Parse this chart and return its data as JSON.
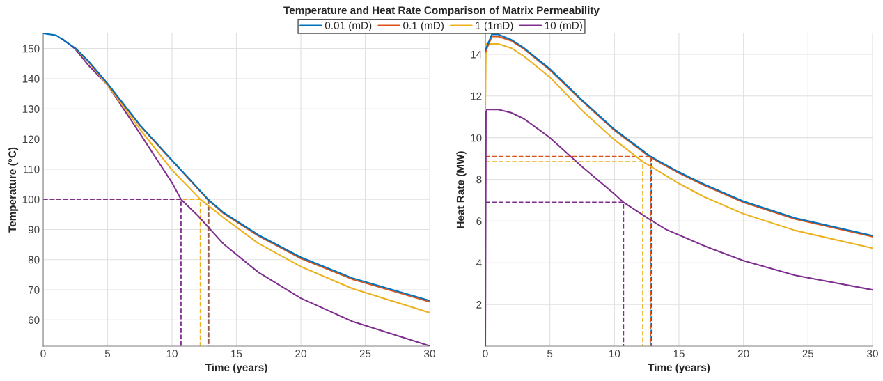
{
  "chart_data": [
    {
      "type": "line",
      "title": "Temperature and Heat Rate Comparison of Matrix Permeability",
      "xlabel": "Time (years)",
      "ylabel": "Temperature (°C)",
      "xlim": [
        0,
        30
      ],
      "xticks": [
        0,
        5,
        10,
        15,
        20,
        25,
        30
      ],
      "ylim": [
        51.3,
        155
      ],
      "yticks": [
        60,
        70,
        80,
        90,
        100,
        110,
        120,
        130,
        140,
        150
      ],
      "grid": true,
      "legend": "top",
      "series": [
        {
          "name": "0.01 (mD)",
          "color": "#0072bd",
          "x": [
            0,
            1,
            2.5,
            3.5,
            5,
            7.5,
            10,
            12.8,
            14,
            16.7,
            20,
            24,
            30
          ],
          "values": [
            155,
            154.4,
            150.1,
            145.9,
            138.4,
            124.7,
            113,
            100,
            95.6,
            88.2,
            80.8,
            73.9,
            66.4
          ]
        },
        {
          "name": "0.1 (mD)",
          "color": "#d95319",
          "x": [
            2.5,
            3.5,
            5,
            7.5,
            10,
            12.8,
            14,
            16.7,
            20,
            24,
            30
          ],
          "values": [
            150.1,
            145.8,
            138.2,
            124.5,
            112.8,
            99.8,
            95.3,
            87.9,
            80.4,
            73.5,
            66
          ]
        },
        {
          "name": "1 (1mD)",
          "color": "#edb120",
          "x": [
            2.5,
            3.5,
            5,
            7.5,
            10,
            12.2,
            14,
            16.7,
            20,
            24,
            30
          ],
          "values": [
            150,
            145.5,
            137.9,
            123.3,
            109.7,
            100,
            93.9,
            85.4,
            77.7,
            70.4,
            62.4
          ]
        },
        {
          "name": "10 (mD)",
          "color": "#7e2f8e",
          "x": [
            1.5,
            2.5,
            3.5,
            5,
            7.5,
            10,
            10.7,
            12,
            13,
            14,
            16.7,
            20,
            24,
            30
          ],
          "values": [
            153.2,
            149.8,
            144.5,
            137.9,
            121.9,
            105.5,
            100,
            94.6,
            89.9,
            85.2,
            75.8,
            67.2,
            59.5,
            51.4
          ]
        },
        {
          "color": "#edb120",
          "line_style": "dashed",
          "x": [
            0,
            12.2,
            12.2
          ],
          "values": [
            100,
            100,
            51.3
          ]
        },
        {
          "color": "#7e2f8e",
          "line_style": "dashed",
          "x": [
            0,
            10.7,
            10.7
          ],
          "values": [
            100,
            100,
            51.3
          ]
        },
        {
          "color": "#0072bd",
          "line_style": "dashed",
          "x": [
            12.85,
            12.85
          ],
          "values": [
            100,
            51.3
          ]
        },
        {
          "color": "#d95319",
          "line_style": "dashed",
          "x": [
            12.8,
            12.8
          ],
          "values": [
            100,
            51.3
          ]
        }
      ]
    },
    {
      "type": "line",
      "xlabel": "Time (years)",
      "ylabel": "Heat Rate (MW)",
      "xlim": [
        0,
        30
      ],
      "xticks": [
        0,
        5,
        10,
        15,
        20,
        25,
        30
      ],
      "ylim": [
        0,
        15
      ],
      "yticks": [
        2,
        4,
        6,
        8,
        10,
        12,
        14
      ],
      "grid": true,
      "series": [
        {
          "color": "#0072bd",
          "x": [
            0,
            0.5,
            1,
            2,
            3,
            5,
            7.5,
            10,
            12.8,
            15,
            17,
            20,
            24,
            30
          ],
          "values": [
            14.2,
            14.95,
            14.95,
            14.7,
            14.3,
            13.3,
            11.8,
            10.4,
            9.1,
            8.35,
            7.75,
            6.95,
            6.15,
            5.3
          ]
        },
        {
          "color": "#d95319",
          "x": [
            0,
            0.5,
            1,
            2,
            3,
            5,
            7.5,
            10,
            12.8,
            15,
            17,
            20,
            24,
            30
          ],
          "values": [
            14.1,
            14.85,
            14.85,
            14.65,
            14.25,
            13.25,
            11.75,
            10.35,
            9.05,
            8.3,
            7.7,
            6.9,
            6.1,
            5.25
          ]
        },
        {
          "color": "#edb120",
          "x": [
            0,
            0.05,
            1,
            2,
            3,
            5,
            7.5,
            10,
            12.2,
            15,
            17,
            20,
            24,
            30
          ],
          "values": [
            11.3,
            14.5,
            14.5,
            14.3,
            13.9,
            12.9,
            11.3,
            9.9,
            8.85,
            7.8,
            7.15,
            6.35,
            5.55,
            4.7
          ]
        },
        {
          "color": "#7e2f8e",
          "x": [
            0,
            0.05,
            1,
            2,
            3,
            5,
            7.5,
            10,
            10.7,
            12.8,
            14,
            17,
            20,
            24,
            30
          ],
          "values": [
            0,
            11.35,
            11.35,
            11.2,
            10.9,
            10,
            8.6,
            7.3,
            6.9,
            6.05,
            5.6,
            4.8,
            4.1,
            3.4,
            2.7
          ]
        },
        {
          "color": "#0072bd",
          "line_style": "dashed",
          "x": [
            12.85,
            12.85
          ],
          "values": [
            9.1,
            0
          ]
        },
        {
          "color": "#edb120",
          "line_style": "dashed",
          "x": [
            0,
            12.2,
            12.2
          ],
          "values": [
            8.85,
            8.85,
            0
          ]
        },
        {
          "color": "#7e2f8e",
          "line_style": "dashed",
          "x": [
            0,
            10.7,
            10.7
          ],
          "values": [
            6.9,
            6.9,
            0
          ]
        },
        {
          "color": "#d95319",
          "line_style": "dashed",
          "x": [
            0,
            12.8,
            12.8
          ],
          "values": [
            9.1,
            9.1,
            0
          ]
        }
      ]
    }
  ]
}
